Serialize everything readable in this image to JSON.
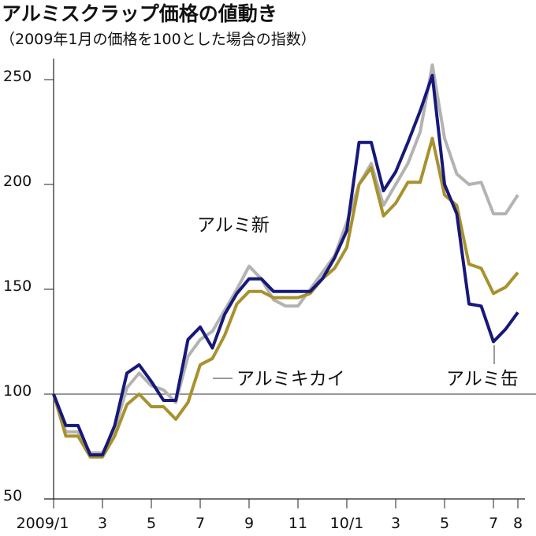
{
  "chart_data": {
    "type": "line",
    "title": "アルミスクラップ価格の値動き",
    "subtitle": "（2009年1月の価格を100とした場合の指数）",
    "x": [
      0,
      0.5,
      1,
      1.5,
      2,
      2.5,
      3,
      3.5,
      4,
      4.5,
      5,
      5.5,
      6,
      6.5,
      7,
      7.5,
      8,
      8.5,
      9,
      9.5,
      10,
      10.5,
      11,
      11.5,
      12,
      12.5,
      13,
      13.5,
      14,
      14.5,
      15,
      15.5,
      16,
      16.5,
      17,
      17.5,
      18,
      18.5,
      19
    ],
    "xlim": [
      0,
      19
    ],
    "xticks": [
      {
        "value": 0,
        "label": "2009/1"
      },
      {
        "value": 2,
        "label": "3"
      },
      {
        "value": 4,
        "label": "5"
      },
      {
        "value": 6,
        "label": "7"
      },
      {
        "value": 8,
        "label": "9"
      },
      {
        "value": 10,
        "label": "11"
      },
      {
        "value": 12,
        "label": "10/1"
      },
      {
        "value": 14,
        "label": "3"
      },
      {
        "value": 16,
        "label": "5"
      },
      {
        "value": 18,
        "label": "7"
      },
      {
        "value": 19,
        "label": "8"
      }
    ],
    "ylim": [
      50,
      260
    ],
    "yticks": [
      50,
      100,
      150,
      200,
      250
    ],
    "baseline": 100,
    "series": [
      {
        "name": "アルミ新",
        "color": "#b3b3b3",
        "values": [
          100,
          82,
          82,
          72,
          72,
          83,
          103,
          110,
          104,
          102,
          96,
          118,
          126,
          130,
          140,
          150,
          161,
          155,
          145,
          142,
          142,
          150,
          158,
          166,
          182,
          200,
          210,
          190,
          200,
          210,
          225,
          257,
          222,
          205,
          200,
          201,
          186,
          186,
          195
        ]
      },
      {
        "name": "アルミキカイ",
        "color": "#a8922e",
        "values": [
          100,
          80,
          80,
          70,
          70,
          80,
          95,
          100,
          94,
          94,
          88,
          96,
          114,
          117,
          128,
          143,
          149,
          149,
          146,
          146,
          146,
          148,
          155,
          160,
          170,
          200,
          208,
          185,
          191,
          201,
          201,
          222,
          195,
          190,
          162,
          160,
          148,
          151,
          158
        ]
      },
      {
        "name": "アルミ缶",
        "color": "#17187a",
        "values": [
          100,
          85,
          85,
          71,
          71,
          85,
          110,
          114,
          106,
          97,
          97,
          126,
          132,
          122,
          138,
          148,
          155,
          155,
          149,
          149,
          149,
          149,
          155,
          165,
          178,
          220,
          220,
          197,
          206,
          220,
          235,
          252,
          200,
          186,
          143,
          142,
          125,
          131,
          139
        ]
      }
    ]
  }
}
